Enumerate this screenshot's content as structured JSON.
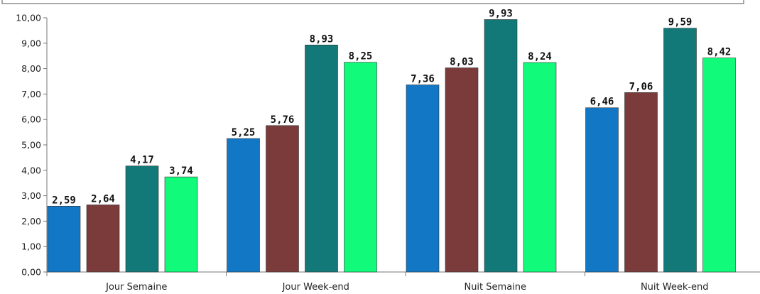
{
  "chart_data": {
    "type": "bar",
    "categories": [
      "Jour Semaine",
      "Jour Week-end",
      "Nuit Semaine",
      "Nuit Week-end"
    ],
    "series": [
      {
        "values": [
          2.59,
          5.25,
          7.36,
          6.46
        ],
        "labels": [
          "2,59",
          "5,25",
          "7,36",
          "6,46"
        ],
        "color": "#1277c4"
      },
      {
        "values": [
          2.64,
          5.76,
          8.03,
          7.06
        ],
        "labels": [
          "2,64",
          "5,76",
          "8,03",
          "7,06"
        ],
        "color": "#7b3b3b"
      },
      {
        "values": [
          4.17,
          8.93,
          9.93,
          9.59
        ],
        "labels": [
          "4,17",
          "8,93",
          "9,93",
          "9,59"
        ],
        "color": "#137878"
      },
      {
        "values": [
          3.74,
          8.25,
          8.24,
          8.42
        ],
        "labels": [
          "3,74",
          "8,25",
          "8,24",
          "8,42"
        ],
        "color": "#11fa7a"
      }
    ],
    "ylim": [
      0,
      10
    ],
    "yticks": [
      "0,00",
      "1,00",
      "2,00",
      "3,00",
      "4,00",
      "5,00",
      "6,00",
      "7,00",
      "8,00",
      "9,00",
      "10,00"
    ],
    "title": "",
    "xlabel": "",
    "ylabel": "",
    "grid": false,
    "legend": "none"
  }
}
